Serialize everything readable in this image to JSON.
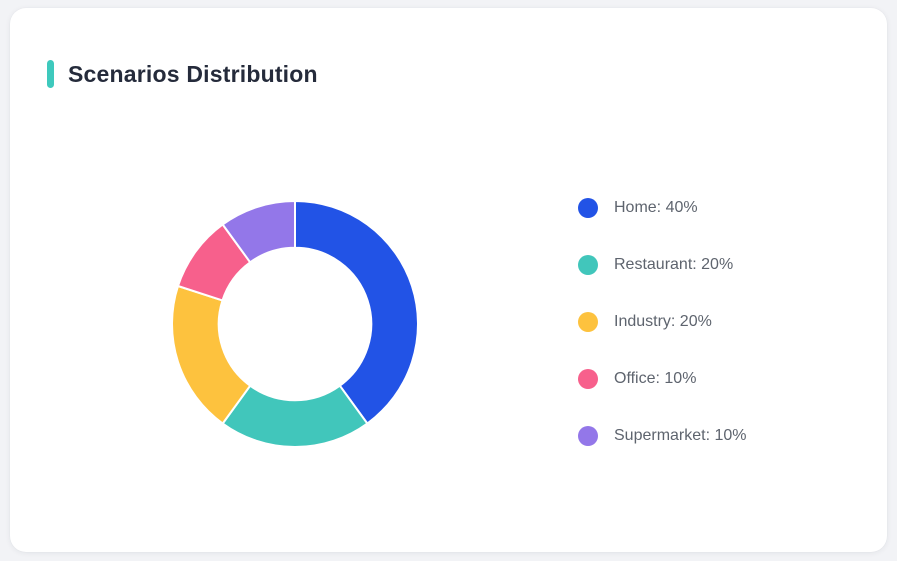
{
  "card": {
    "title": "Scenarios Distribution",
    "accent_color": "#3ec9bd",
    "background": "#ffffff",
    "page_background": "#f2f3f6"
  },
  "chart_data": {
    "type": "pie",
    "subtype": "donut",
    "title": "Scenarios Distribution",
    "categories": [
      "Home",
      "Restaurant",
      "Industry",
      "Office",
      "Supermarket"
    ],
    "values": [
      40,
      20,
      20,
      10,
      10
    ],
    "unit": "%",
    "colors": [
      "#2253e6",
      "#41c6bb",
      "#fdc23e",
      "#f7608c",
      "#9377e9"
    ],
    "legend_labels": [
      "Home: 40%",
      "Restaurant: 20%",
      "Industry: 20%",
      "Office: 10%",
      "Supermarket: 10%"
    ],
    "legend_position": "right",
    "start_angle_deg": 0,
    "direction": "clockwise",
    "inner_radius_ratio": 0.62,
    "segment_gap_color": "#ffffff",
    "grid": false
  }
}
